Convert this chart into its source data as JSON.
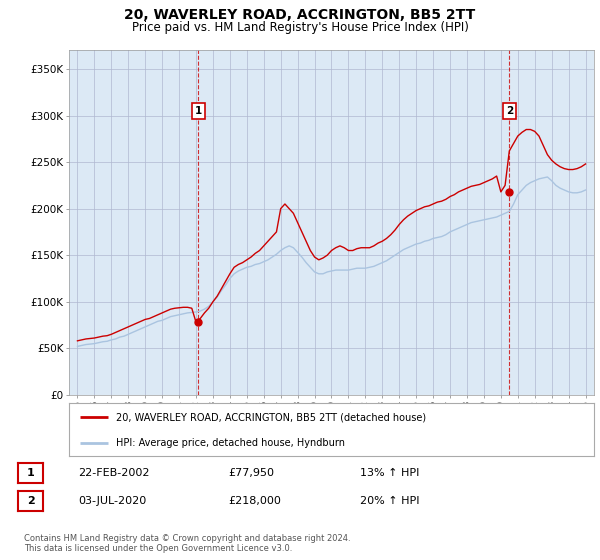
{
  "title": "20, WAVERLEY ROAD, ACCRINGTON, BB5 2TT",
  "subtitle": "Price paid vs. HM Land Registry's House Price Index (HPI)",
  "title_fontsize": 10,
  "subtitle_fontsize": 8.5,
  "plot_bg_color": "#dce9f5",
  "fig_bg_color": "#ffffff",
  "grid_color": "#b0b8d0",
  "hpi_color": "#aac4e0",
  "price_color": "#cc0000",
  "sale1_date_num": 2002.14,
  "sale2_date_num": 2020.5,
  "sale1_price": 77950,
  "sale2_price": 218000,
  "sale1_label": "22-FEB-2002",
  "sale2_label": "03-JUL-2020",
  "sale1_hpi_pct": "13%",
  "sale2_hpi_pct": "20%",
  "legend_label_red": "20, WAVERLEY ROAD, ACCRINGTON, BB5 2TT (detached house)",
  "legend_label_blue": "HPI: Average price, detached house, Hyndburn",
  "footer": "Contains HM Land Registry data © Crown copyright and database right 2024.\nThis data is licensed under the Open Government Licence v3.0.",
  "ylim": [
    0,
    370000
  ],
  "xlim": [
    1994.5,
    2025.5
  ],
  "yticks": [
    0,
    50000,
    100000,
    150000,
    200000,
    250000,
    300000,
    350000
  ],
  "ytick_labels": [
    "£0",
    "£50K",
    "£100K",
    "£150K",
    "£200K",
    "£250K",
    "£300K",
    "£350K"
  ],
  "xticks": [
    1995,
    1996,
    1997,
    1998,
    1999,
    2000,
    2001,
    2002,
    2003,
    2004,
    2005,
    2006,
    2007,
    2008,
    2009,
    2010,
    2011,
    2012,
    2013,
    2014,
    2015,
    2016,
    2017,
    2018,
    2019,
    2020,
    2021,
    2022,
    2023,
    2024,
    2025
  ],
  "hpi_x": [
    1995,
    1995.25,
    1995.5,
    1995.75,
    1996,
    1996.25,
    1996.5,
    1996.75,
    1997,
    1997.25,
    1997.5,
    1997.75,
    1998,
    1998.25,
    1998.5,
    1998.75,
    1999,
    1999.25,
    1999.5,
    1999.75,
    2000,
    2000.25,
    2000.5,
    2000.75,
    2001,
    2001.25,
    2001.5,
    2001.75,
    2002,
    2002.25,
    2002.5,
    2002.75,
    2003,
    2003.25,
    2003.5,
    2003.75,
    2004,
    2004.25,
    2004.5,
    2004.75,
    2005,
    2005.25,
    2005.5,
    2005.75,
    2006,
    2006.25,
    2006.5,
    2006.75,
    2007,
    2007.25,
    2007.5,
    2007.75,
    2008,
    2008.25,
    2008.5,
    2008.75,
    2009,
    2009.25,
    2009.5,
    2009.75,
    2010,
    2010.25,
    2010.5,
    2010.75,
    2011,
    2011.25,
    2011.5,
    2011.75,
    2012,
    2012.25,
    2012.5,
    2012.75,
    2013,
    2013.25,
    2013.5,
    2013.75,
    2014,
    2014.25,
    2014.5,
    2014.75,
    2015,
    2015.25,
    2015.5,
    2015.75,
    2016,
    2016.25,
    2016.5,
    2016.75,
    2017,
    2017.25,
    2017.5,
    2017.75,
    2018,
    2018.25,
    2018.5,
    2018.75,
    2019,
    2019.25,
    2019.5,
    2019.75,
    2020,
    2020.25,
    2020.5,
    2020.75,
    2021,
    2021.25,
    2021.5,
    2021.75,
    2022,
    2022.25,
    2022.5,
    2022.75,
    2023,
    2023.25,
    2023.5,
    2023.75,
    2024,
    2024.25,
    2024.5,
    2024.75,
    2025
  ],
  "hpi_y": [
    52000,
    53000,
    54000,
    54500,
    55000,
    56000,
    57000,
    57500,
    59000,
    60000,
    62000,
    63000,
    65000,
    67000,
    69000,
    71000,
    73000,
    75000,
    77000,
    79000,
    80000,
    82000,
    84000,
    85000,
    86000,
    87000,
    88000,
    88500,
    89000,
    90000,
    92000,
    95000,
    100000,
    105000,
    112000,
    118000,
    125000,
    130000,
    133000,
    135000,
    137000,
    138000,
    140000,
    141000,
    143000,
    145000,
    148000,
    151000,
    155000,
    158000,
    160000,
    158000,
    153000,
    148000,
    142000,
    137000,
    132000,
    130000,
    130000,
    132000,
    133000,
    134000,
    134000,
    134000,
    134000,
    135000,
    136000,
    136000,
    136000,
    137000,
    138000,
    140000,
    142000,
    144000,
    147000,
    150000,
    153000,
    156000,
    158000,
    160000,
    162000,
    163000,
    165000,
    166000,
    168000,
    169000,
    170000,
    172000,
    175000,
    177000,
    179000,
    181000,
    183000,
    185000,
    186000,
    187000,
    188000,
    189000,
    190000,
    191000,
    193000,
    195000,
    197000,
    205000,
    215000,
    220000,
    225000,
    228000,
    230000,
    232000,
    233000,
    234000,
    230000,
    225000,
    222000,
    220000,
    218000,
    217000,
    217000,
    218000,
    220000
  ],
  "red_x": [
    1995,
    1995.25,
    1995.5,
    1995.75,
    1996,
    1996.25,
    1996.5,
    1996.75,
    1997,
    1997.25,
    1997.5,
    1997.75,
    1998,
    1998.25,
    1998.5,
    1998.75,
    1999,
    1999.25,
    1999.5,
    1999.75,
    2000,
    2000.25,
    2000.5,
    2000.75,
    2001,
    2001.25,
    2001.5,
    2001.75,
    2002,
    2002.25,
    2002.5,
    2002.75,
    2003,
    2003.25,
    2003.5,
    2003.75,
    2004,
    2004.25,
    2004.5,
    2004.75,
    2005,
    2005.25,
    2005.5,
    2005.75,
    2006,
    2006.25,
    2006.5,
    2006.75,
    2007,
    2007.25,
    2007.5,
    2007.75,
    2008,
    2008.25,
    2008.5,
    2008.75,
    2009,
    2009.25,
    2009.5,
    2009.75,
    2010,
    2010.25,
    2010.5,
    2010.75,
    2011,
    2011.25,
    2011.5,
    2011.75,
    2012,
    2012.25,
    2012.5,
    2012.75,
    2013,
    2013.25,
    2013.5,
    2013.75,
    2014,
    2014.25,
    2014.5,
    2014.75,
    2015,
    2015.25,
    2015.5,
    2015.75,
    2016,
    2016.25,
    2016.5,
    2016.75,
    2017,
    2017.25,
    2017.5,
    2017.75,
    2018,
    2018.25,
    2018.5,
    2018.75,
    2019,
    2019.25,
    2019.5,
    2019.75,
    2020,
    2020.25,
    2020.5,
    2020.75,
    2021,
    2021.25,
    2021.5,
    2021.75,
    2022,
    2022.25,
    2022.5,
    2022.75,
    2023,
    2023.25,
    2023.5,
    2023.75,
    2024,
    2024.25,
    2024.5,
    2024.75,
    2025
  ],
  "red_y": [
    58000,
    59000,
    60000,
    60500,
    61000,
    62000,
    63000,
    63500,
    65000,
    67000,
    69000,
    71000,
    73000,
    75000,
    77000,
    79000,
    81000,
    82000,
    84000,
    86000,
    88000,
    90000,
    92000,
    93000,
    93500,
    94000,
    94000,
    93000,
    78000,
    82000,
    88000,
    93000,
    100000,
    106000,
    114000,
    122000,
    130000,
    137000,
    140000,
    142000,
    145000,
    148000,
    152000,
    155000,
    160000,
    165000,
    170000,
    175000,
    200000,
    205000,
    200000,
    195000,
    185000,
    175000,
    165000,
    155000,
    148000,
    145000,
    147000,
    150000,
    155000,
    158000,
    160000,
    158000,
    155000,
    155000,
    157000,
    158000,
    158000,
    158000,
    160000,
    163000,
    165000,
    168000,
    172000,
    177000,
    183000,
    188000,
    192000,
    195000,
    198000,
    200000,
    202000,
    203000,
    205000,
    207000,
    208000,
    210000,
    213000,
    215000,
    218000,
    220000,
    222000,
    224000,
    225000,
    226000,
    228000,
    230000,
    232000,
    235000,
    218000,
    225000,
    262000,
    270000,
    278000,
    282000,
    285000,
    285000,
    283000,
    278000,
    268000,
    258000,
    252000,
    248000,
    245000,
    243000,
    242000,
    242000,
    243000,
    245000,
    248000
  ]
}
